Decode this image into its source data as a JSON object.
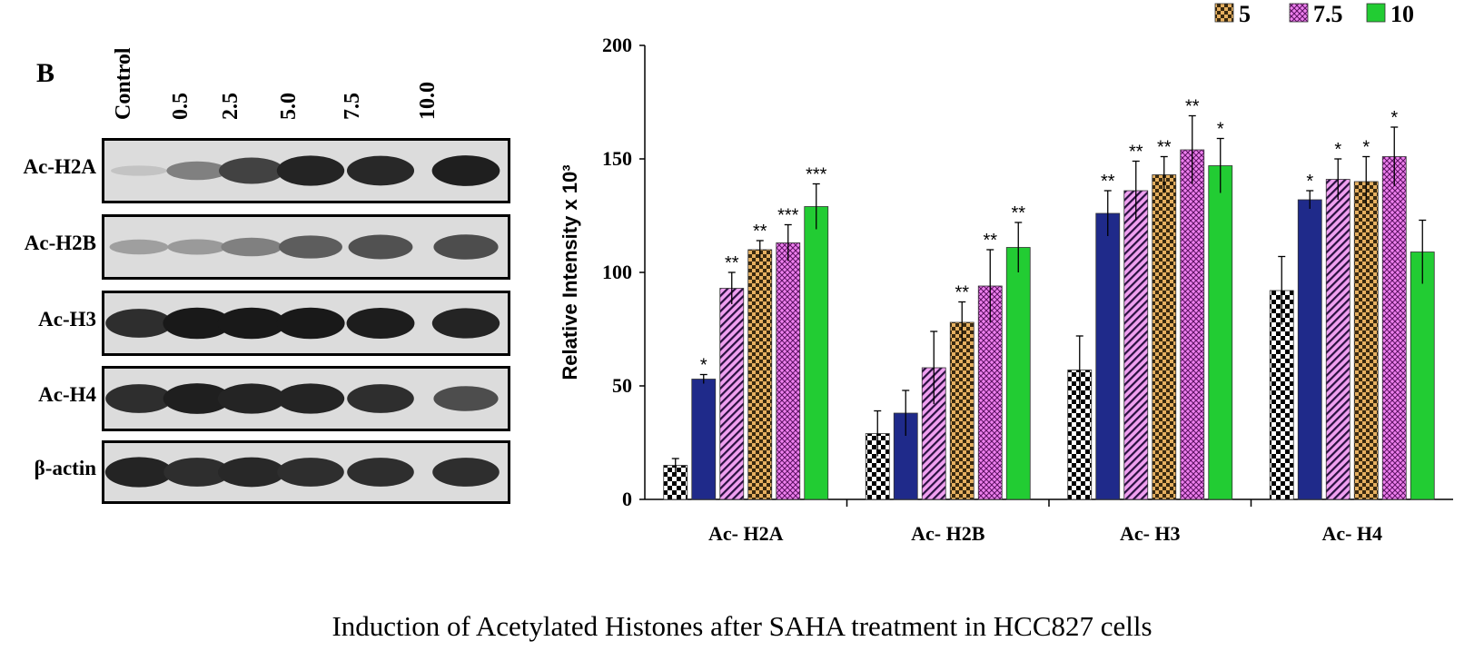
{
  "panel": {
    "letter": "B"
  },
  "blot": {
    "lanes": [
      "Control",
      "0.5",
      "2.5",
      "5.0",
      "7.5",
      "10.0"
    ],
    "rows": [
      {
        "label": "Ac-H2A",
        "intensity": [
          0.12,
          0.45,
          0.75,
          0.9,
          0.88,
          0.92
        ]
      },
      {
        "label": "Ac-H2B",
        "intensity": [
          0.3,
          0.32,
          0.45,
          0.62,
          0.68,
          0.7
        ]
      },
      {
        "label": "Ac-H3",
        "intensity": [
          0.85,
          0.95,
          0.95,
          0.95,
          0.93,
          0.9
        ]
      },
      {
        "label": "Ac-H4",
        "intensity": [
          0.85,
          0.92,
          0.9,
          0.9,
          0.85,
          0.7
        ]
      },
      {
        "label": "β-actin",
        "intensity": [
          0.9,
          0.85,
          0.88,
          0.85,
          0.85,
          0.85
        ]
      }
    ]
  },
  "chart_data": {
    "type": "bar",
    "ylabel": "Relative Intensity x 10³",
    "ylim": [
      0,
      200
    ],
    "yticks": [
      0,
      50,
      100,
      150,
      200
    ],
    "categories": [
      "Ac- H2A",
      "Ac- H2B",
      "Ac- H3",
      "Ac- H4"
    ],
    "legend_visible": [
      "5",
      "7.5",
      "10"
    ],
    "legend_placement": "top-right",
    "series": [
      {
        "values": [
          15,
          29,
          57,
          92
        ],
        "errors": [
          3,
          10,
          15,
          15
        ],
        "stars": [
          "",
          "",
          "",
          ""
        ],
        "color": "#ffffff",
        "pattern": "diamond",
        "pattern_color": "#000000"
      },
      {
        "values": [
          53,
          38,
          126,
          132
        ],
        "errors": [
          2,
          10,
          10,
          4
        ],
        "stars": [
          "*",
          "",
          "**",
          "*"
        ],
        "color": "#1f2a8a",
        "pattern": "solid",
        "pattern_color": "#1f2a8a"
      },
      {
        "values": [
          93,
          58,
          136,
          141
        ],
        "errors": [
          7,
          16,
          13,
          9
        ],
        "stars": [
          "**",
          "",
          "**",
          "*"
        ],
        "color": "#f0a0f0",
        "pattern": "diag",
        "pattern_color": "#2a1040"
      },
      {
        "name": "5",
        "values": [
          110,
          78,
          143,
          140
        ],
        "errors": [
          4,
          9,
          8,
          11
        ],
        "stars": [
          "**",
          "**",
          "**",
          "*"
        ],
        "color": "#e6b060",
        "pattern": "check",
        "pattern_color": "#3a2a10"
      },
      {
        "name": "7.5",
        "values": [
          113,
          94,
          154,
          151
        ],
        "errors": [
          8,
          16,
          15,
          13
        ],
        "stars": [
          "***",
          "**",
          "**",
          "*"
        ],
        "color": "#ee80ee",
        "pattern": "cross",
        "pattern_color": "#5a1060"
      },
      {
        "name": "10",
        "values": [
          129,
          111,
          147,
          109
        ],
        "errors": [
          10,
          11,
          12,
          14
        ],
        "stars": [
          "***",
          "**",
          "*",
          ""
        ],
        "color": "#22cc33",
        "pattern": "solid",
        "pattern_color": "#22cc33"
      }
    ]
  },
  "caption": "Induction of Acetylated Histones after SAHA treatment in HCC827 cells"
}
